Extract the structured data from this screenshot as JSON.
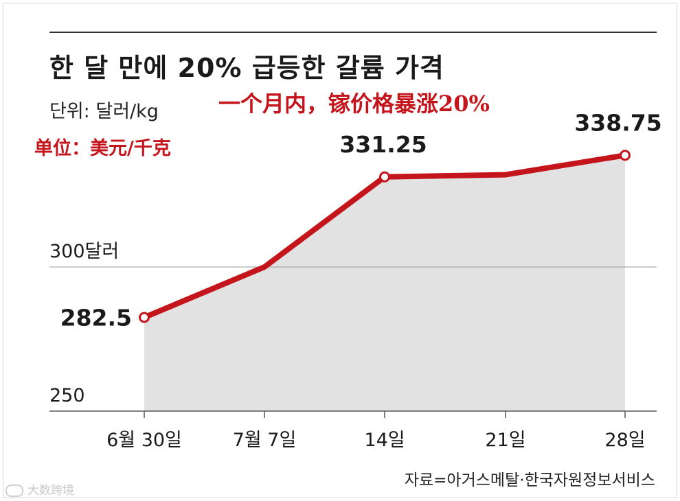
{
  "header": {
    "title": "한 달 만에 20% 급등한 갈륨 가격",
    "unit": "단위: 달러/kg"
  },
  "overlay": {
    "title": "一个月内，镓价格暴涨20%",
    "unit": "单位：美元/千克"
  },
  "footer": {
    "source": "자료=아거스메탈·한국자원정보서비스",
    "watermark": "大数跨境"
  },
  "colors": {
    "line": "#c4151c",
    "area": "#e2e2e2",
    "overlay_text": "#c4151c"
  },
  "chart_data": {
    "type": "area",
    "categories": [
      "6월 30일",
      "7월 7일",
      "14일",
      "21일",
      "28일"
    ],
    "values": [
      282.5,
      300,
      331.25,
      332,
      338.75
    ],
    "data_labels": [
      {
        "index": 0,
        "text": "282.5"
      },
      {
        "index": 2,
        "text": "331.25"
      },
      {
        "index": 4,
        "text": "338.75"
      }
    ],
    "marked_points": [
      0,
      2,
      4
    ],
    "y_ticks": [
      {
        "value": 250,
        "label": "250"
      },
      {
        "value": 300,
        "label": "300달러"
      }
    ],
    "ylim": [
      250,
      345
    ],
    "grid": true,
    "legend": "none"
  }
}
